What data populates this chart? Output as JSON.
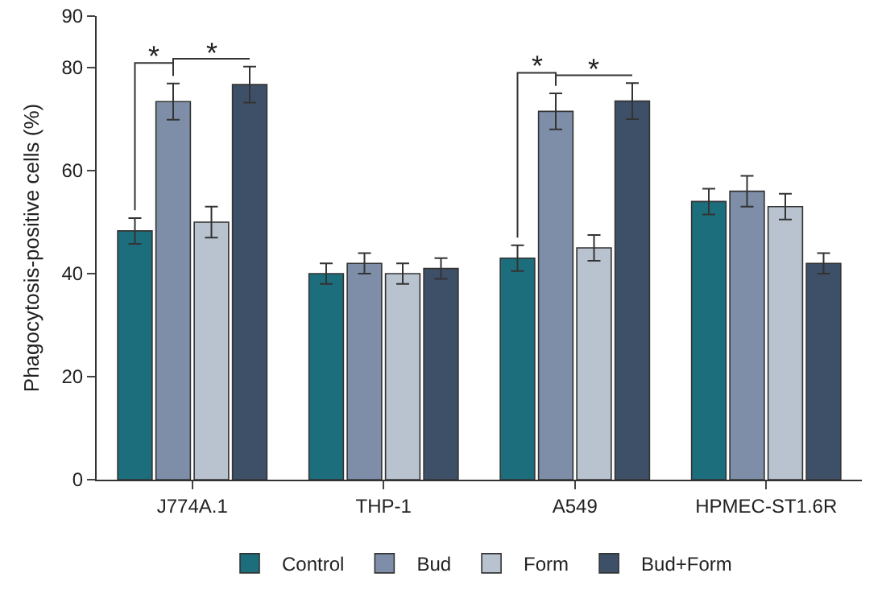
{
  "chart_data": {
    "type": "bar",
    "ylabel": "Phagocytosis-positive cells (%)",
    "categories": [
      "J774A.1",
      "THP-1",
      "A549",
      "HPMEC-ST1.6R"
    ],
    "series": [
      {
        "name": "Control",
        "color": "#1d6e7c",
        "values": [
          48.3,
          40,
          43,
          54
        ],
        "errors": [
          2.5,
          2,
          2.5,
          2.5
        ]
      },
      {
        "name": "Bud",
        "color": "#7e8ea8",
        "values": [
          73.4,
          42,
          71.5,
          56
        ],
        "errors": [
          3.5,
          2,
          3.5,
          3
        ]
      },
      {
        "name": "Form",
        "color": "#b8c3cf",
        "values": [
          50,
          40,
          45,
          53
        ],
        "errors": [
          3,
          2,
          2.5,
          2.5
        ]
      },
      {
        "name": "Bud+Form",
        "color": "#3e5068",
        "values": [
          76.7,
          41,
          73.5,
          42
        ],
        "errors": [
          3.5,
          2,
          3.5,
          2
        ]
      }
    ],
    "ylim": [
      0,
      90
    ],
    "yticks": [
      0,
      20,
      40,
      60,
      80,
      90
    ],
    "grid": false,
    "legend": "bottom",
    "annotations": [
      "*",
      "*",
      "*",
      "*"
    ]
  }
}
